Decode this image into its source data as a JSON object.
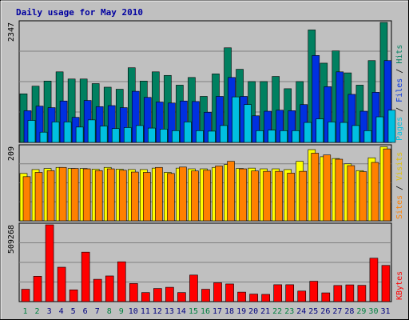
{
  "chart_data": {
    "type": "bar",
    "title": "Daily usage for May 2010",
    "categories": [
      "1",
      "2",
      "3",
      "4",
      "5",
      "6",
      "7",
      "8",
      "9",
      "10",
      "11",
      "12",
      "13",
      "14",
      "15",
      "16",
      "17",
      "18",
      "19",
      "20",
      "21",
      "22",
      "23",
      "24",
      "25",
      "26",
      "27",
      "28",
      "29",
      "30",
      "31"
    ],
    "weekend_days": [
      1,
      2,
      8,
      9,
      15,
      16,
      22,
      23,
      29,
      30
    ],
    "panels": [
      {
        "name": "hits-files-pages",
        "ymax_label": "2347",
        "ymax": 2347,
        "right_label": [
          "Pages",
          " / ",
          "Files",
          " / ",
          "Hits"
        ],
        "right_label_colors": [
          "#00c0e0",
          "#000000",
          "#0030e0",
          "#000000",
          "#008060"
        ],
        "series": [
          {
            "name": "Hits",
            "color": "#008060",
            "values": [
              950,
              1100,
              1200,
              1380,
              1240,
              1240,
              1150,
              1080,
              1040,
              1460,
              1200,
              1380,
              1310,
              1120,
              1270,
              900,
              1340,
              1850,
              1430,
              1190,
              1190,
              1290,
              1050,
              1190,
              2200,
              1550,
              1790,
              1360,
              1120,
              1600,
              2347
            ]
          },
          {
            "name": "Files",
            "color": "#0030e0",
            "values": [
              620,
              710,
              680,
              810,
              490,
              820,
              700,
              720,
              680,
              1000,
              880,
              790,
              770,
              810,
              800,
              590,
              900,
              1270,
              900,
              520,
              610,
              630,
              620,
              740,
              1700,
              1090,
              1380,
              940,
              610,
              980,
              1600
            ]
          },
          {
            "name": "Pages",
            "color": "#00c0e0",
            "values": [
              430,
              200,
              400,
              400,
              300,
              440,
              320,
              270,
              290,
              330,
              280,
              260,
              230,
              400,
              230,
              220,
              330,
              890,
              740,
              230,
              240,
              230,
              230,
              390,
              460,
              400,
              390,
              330,
              230,
              500,
              630
            ]
          }
        ]
      },
      {
        "name": "visits-sites",
        "ymax_label": "209",
        "ymax": 209,
        "right_label": [
          "Sites",
          " / ",
          "Visits"
        ],
        "right_label_colors": [
          "#ff8000",
          "#000000",
          "#e0c000"
        ],
        "series": [
          {
            "name": "Visits",
            "color": "#ffff00",
            "values": [
              133,
              144,
              147,
              150,
              147,
              147,
              145,
              150,
              145,
              144,
              144,
              148,
              136,
              148,
              146,
              146,
              150,
              158,
              147,
              148,
              146,
              146,
              144,
              167,
              200,
              180,
              175,
              160,
              141,
              177,
              208
            ]
          },
          {
            "name": "Sites",
            "color": "#ff8000",
            "values": [
              124,
              136,
              141,
              150,
              147,
              146,
              141,
              146,
              142,
              137,
              136,
              150,
              133,
              151,
              140,
              142,
              154,
              167,
              146,
              140,
              139,
              139,
              134,
              139,
              190,
              185,
              173,
              155,
              138,
              164,
              202
            ]
          }
        ]
      },
      {
        "name": "kbytes",
        "ymax_label": "509268",
        "ymax": 509268,
        "right_label": [
          "KBytes"
        ],
        "right_label_colors": [
          "#ff0000"
        ],
        "series": [
          {
            "name": "KBytes",
            "color": "#ff0000",
            "values": [
              82000,
              168000,
              509268,
              228000,
              78000,
              328000,
              148000,
              170000,
              264000,
              120000,
              60000,
              87000,
              95000,
              60000,
              176000,
              82000,
              125000,
              117000,
              63000,
              50000,
              48000,
              112000,
              112000,
              70000,
              135000,
              58000,
              107000,
              111000,
              108000,
              288000,
              240000
            ]
          }
        ]
      }
    ]
  }
}
